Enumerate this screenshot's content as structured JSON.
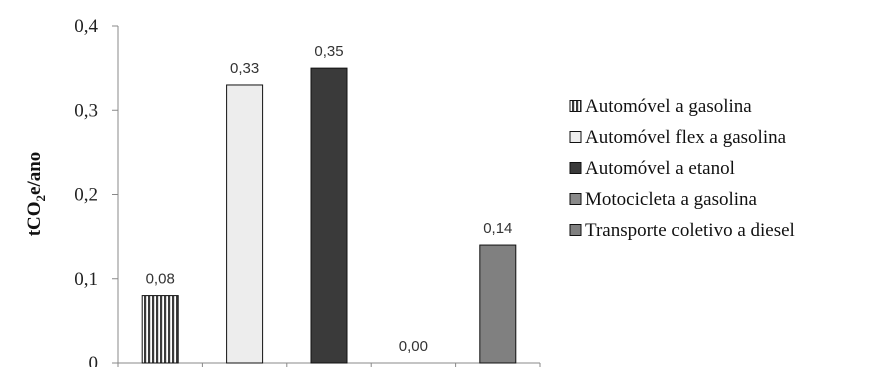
{
  "chart_data": {
    "type": "bar",
    "ylabel": "tCO2e/ano",
    "ylabel_parts": {
      "prefix": "tCO",
      "subscript": "2",
      "suffix": "e/ano"
    },
    "ylim": [
      0,
      0.4
    ],
    "yticks": [
      0,
      0.1,
      0.2,
      0.3,
      0.4
    ],
    "ytick_labels": [
      "0",
      "0,1",
      "0,2",
      "0,3",
      "0,4"
    ],
    "grid": false,
    "legend_position": "right",
    "series": [
      {
        "name": "Automóvel a gasolina",
        "value": 0.08,
        "label": "0,08",
        "fill": "#6e6e6e",
        "pattern": "vertical-stripes"
      },
      {
        "name": "Automóvel flex a gasolina",
        "value": 0.33,
        "label": "0,33",
        "fill": "#ededed",
        "pattern": "solid"
      },
      {
        "name": "Automóvel a etanol",
        "value": 0.35,
        "label": "0,35",
        "fill": "#3a3a3a",
        "pattern": "solid"
      },
      {
        "name": "Motocicleta a gasolina",
        "value": 0.0,
        "label": "0,00",
        "fill": "#8a8a8a",
        "pattern": "solid"
      },
      {
        "name": "Transporte coletivo a diesel",
        "value": 0.14,
        "label": "0,14",
        "fill": "#808080",
        "pattern": "solid"
      }
    ]
  }
}
